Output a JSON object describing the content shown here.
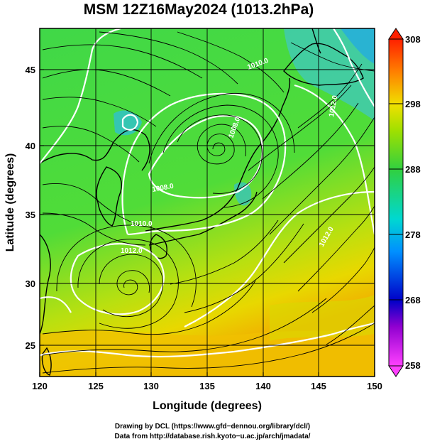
{
  "title": "MSM 12Z16May2024 (1013.2hPa)",
  "axes": {
    "xlabel": "Longitude (degrees)",
    "ylabel": "Latitude  (degrees)",
    "x_ticks": [
      "120",
      "125",
      "130",
      "135",
      "140",
      "145",
      "150"
    ],
    "y_ticks": [
      "25",
      "30",
      "35",
      "40",
      "45"
    ],
    "xlim": [
      120,
      150
    ],
    "ylim": [
      22.4,
      47.6
    ]
  },
  "colorbar": {
    "ticks": [
      "308",
      "298",
      "288",
      "278",
      "268",
      "258"
    ],
    "range": [
      258,
      308
    ]
  },
  "contour_labels": [
    "1008.0",
    "1008.0",
    "1010.0",
    "1010.0",
    "1012.0",
    "1012.0",
    "1012.0"
  ],
  "credits": {
    "line1": "Drawing by DCL (https://www.gfd−dennou.org/library/dcl/)",
    "line2": "Data from http://database.rish.kyoto−u.ac.jp/arch/jmadata/"
  },
  "colors": {
    "land_green": "#4fdc3c",
    "warm_yellow": "#e8e000",
    "warm_orange": "#f0b000",
    "cool_cyan": "#30c8c0",
    "isobar": "#ffffff",
    "streamline": "#000000"
  },
  "chart_data": {
    "type": "map",
    "title": "MSM 12Z16May2024 (1013.2hPa)",
    "xlabel": "Longitude (degrees)",
    "ylabel": "Latitude  (degrees)",
    "xlim": [
      120,
      150
    ],
    "ylim": [
      22.4,
      47.6
    ],
    "grid": true,
    "colorbar_range": [
      258,
      308
    ],
    "colorbar_ticks": [
      258,
      268,
      278,
      288,
      298,
      308
    ],
    "low_pressure_centers": [
      {
        "lon": 135.5,
        "lat": 39.7,
        "isobar": 1008.0
      },
      {
        "lon": 127.5,
        "lat": 28.5,
        "isobar": 1012.0
      }
    ]
  }
}
